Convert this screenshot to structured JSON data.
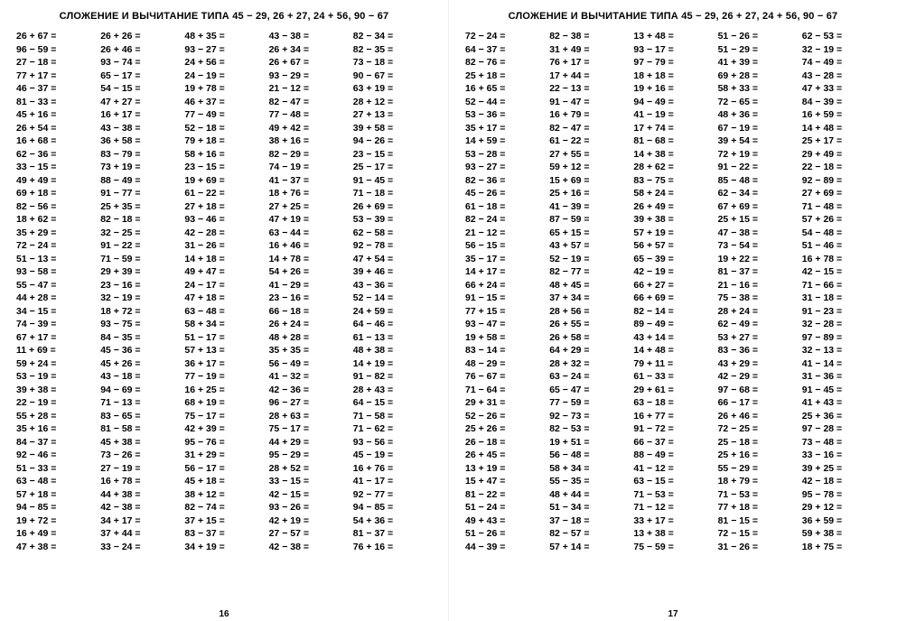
{
  "title": "СЛОЖЕНИЕ И ВЫЧИТАНИЕ ТИПА 45 − 29, 26 + 27, 24 + 56, 90 − 67",
  "page_left_num": "16",
  "page_right_num": "17",
  "left_cols": [
    [
      "26 + 67 =",
      "96 − 59 =",
      "27 − 18 =",
      "77 + 17 =",
      "46 − 37 =",
      "81 − 33 =",
      "45 + 16 =",
      "26 + 54 =",
      "16 + 68 =",
      "62 − 36 =",
      "33 − 15 =",
      "49 + 49 =",
      "69 + 18 =",
      "82 − 56 =",
      "18 + 62 =",
      "35 + 29 =",
      "72 − 24 =",
      "51 − 13 =",
      "93 − 58 =",
      "55 − 47 =",
      "44 + 28 =",
      "34 − 15 =",
      "74 − 39 =",
      "67 + 17 =",
      "11 + 69 =",
      "59 + 24 =",
      "53 − 19 =",
      "39 + 38 =",
      "22 − 19 =",
      "55 + 28 =",
      "35 + 16 =",
      "84 − 37 =",
      "92 − 46 =",
      "51 − 33 =",
      "63 − 48 =",
      "57 + 18 =",
      "94 − 85 =",
      "19 + 72 =",
      "16 + 49 =",
      "47 + 38 ="
    ],
    [
      "26 + 26 =",
      "26 + 46 =",
      "93 − 74 =",
      "65 − 17 =",
      "54 − 15 =",
      "47 + 27 =",
      "16 + 17 =",
      "43 − 38 =",
      "36 + 58 =",
      "83 − 79 =",
      "73 + 19 =",
      "88 − 49 =",
      "91 − 77 =",
      "25 + 35 =",
      "82 − 18 =",
      "32 − 25 =",
      "91 − 22 =",
      "71 − 59 =",
      "29 + 39 =",
      "23 − 16 =",
      "32 − 19 =",
      "18 + 72 =",
      "93 − 75 =",
      "84 − 35 =",
      "45 − 36 =",
      "45 + 26 =",
      "43 − 18 =",
      "94 − 69 =",
      "71 − 13 =",
      "83 − 65 =",
      "81 − 58 =",
      "45 + 38 =",
      "73 − 26 =",
      "27 − 19 =",
      "16 + 78 =",
      "44 + 38 =",
      "42 − 38 =",
      "34 + 17 =",
      "37 + 44 =",
      "33 − 24 ="
    ],
    [
      "48 + 35 =",
      "93 − 27 =",
      "24 + 56 =",
      "24 − 19 =",
      "19 + 78 =",
      "46 + 37 =",
      "77 − 49 =",
      "52 − 18 =",
      "79 + 18 =",
      "58 + 16 =",
      "23 − 15 =",
      "19 + 69 =",
      "61 − 22 =",
      "27 + 18 =",
      "93 − 46 =",
      "42 − 28 =",
      "31 − 26 =",
      "14 + 18 =",
      "49 + 47 =",
      "24 − 17 =",
      "47 + 18 =",
      "63 − 48 =",
      "58 + 34 =",
      "51 − 17 =",
      "57 + 13 =",
      "36 + 17 =",
      "77 − 19 =",
      "16 + 25 =",
      "68 + 19 =",
      "75 − 17 =",
      "42 + 39 =",
      "95 − 76 =",
      "31 + 29 =",
      "56 − 17 =",
      "45 + 18 =",
      "38 + 12 =",
      "82 − 74 =",
      "37 + 15 =",
      "83 − 37 =",
      "34 + 19 ="
    ],
    [
      "43 − 38 =",
      "26 + 34 =",
      "26 + 67 =",
      "93 − 29 =",
      "21 − 12 =",
      "82 − 47 =",
      "77 − 48 =",
      "49 + 42 =",
      "38 + 16 =",
      "82 − 29 =",
      "74 − 19 =",
      "41 − 37 =",
      "18 + 76 =",
      "27 + 25 =",
      "47 + 19 =",
      "63 − 44 =",
      "16 + 46 =",
      "14 + 78 =",
      "54 + 26 =",
      "41 − 29 =",
      "23 − 16 =",
      "66 − 18 =",
      "26 + 24 =",
      "48 + 28 =",
      "35 + 35 =",
      "56 − 49 =",
      "41 − 32 =",
      "42 − 36 =",
      "96 − 27 =",
      "28 + 63 =",
      "75 − 17 =",
      "44 + 29 =",
      "95 − 29 =",
      "28 + 52 =",
      "33 − 15 =",
      "42 − 15 =",
      "93 − 26 =",
      "42 + 19 =",
      "27 − 57 =",
      "42 − 38 ="
    ],
    [
      "82 − 34 =",
      "82 − 35 =",
      "73 − 18 =",
      "90 − 67 =",
      "63 + 19 =",
      "28 + 12 =",
      "27 + 13 =",
      "39 + 58 =",
      "94 − 26 =",
      "23 − 15 =",
      "25 − 17 =",
      "91 − 45 =",
      "71 − 18 =",
      "26 + 69 =",
      "53 − 39 =",
      "62 − 58 =",
      "92 − 78 =",
      "47 + 54 =",
      "39 + 46 =",
      "43 − 36 =",
      "52 − 14 =",
      "24 + 59 =",
      "64 − 46 =",
      "61 − 13 =",
      "48 + 38 =",
      "14 + 19 =",
      "91 − 82 =",
      "28 + 43 =",
      "64 − 15 =",
      "71 − 58 =",
      "71 − 62 =",
      "93 − 56 =",
      "45 − 19 =",
      "16 + 76 =",
      "41 − 17 =",
      "92 − 77 =",
      "94 − 85 =",
      "54 + 36 =",
      "81 − 37 =",
      "76 + 16 ="
    ]
  ],
  "right_cols": [
    [
      "72 − 24 =",
      "64 − 37 =",
      "82 − 76 =",
      "25 + 18 =",
      "16 + 65 =",
      "52 − 44 =",
      "53 − 36 =",
      "35 + 17 =",
      "14 + 59 =",
      "53 − 28 =",
      "93 − 27 =",
      "82 − 36 =",
      "45 − 26 =",
      "61 − 18 =",
      "82 − 24 =",
      "21 − 12 =",
      "56 − 15 =",
      "35 − 17 =",
      "14 + 17 =",
      "66 + 24 =",
      "91 − 15 =",
      "77 + 15 =",
      "93 − 47 =",
      "19 + 58 =",
      "83 − 14 =",
      "48 − 29 =",
      "76 − 67 =",
      "71 − 64 =",
      "29 + 31 =",
      "52 − 26 =",
      "25 + 26 =",
      "26 − 18 =",
      "26 + 45 =",
      "13 + 19 =",
      "15 + 47 =",
      "81 − 22 =",
      "51 − 24 =",
      "49 + 43 =",
      "51 − 26 =",
      "44 − 39 ="
    ],
    [
      "82 − 38 =",
      "31 + 49 =",
      "76 + 17 =",
      "17 + 44 =",
      "22 − 13 =",
      "91 − 47 =",
      "16 + 79 =",
      "82 − 47 =",
      "61 − 22 =",
      "27 + 55 =",
      "59 + 12 =",
      "15 + 69 =",
      "25 + 16 =",
      "41 − 39 =",
      "87 − 59 =",
      "65 + 15 =",
      "43 + 57 =",
      "52 − 19 =",
      "82 − 77 =",
      "48 + 45 =",
      "37 + 34 =",
      "28 + 56 =",
      "26 + 55 =",
      "26 + 58 =",
      "64 + 29 =",
      "28 + 32 =",
      "63 − 24 =",
      "65 − 47 =",
      "77 − 59 =",
      "92 − 73 =",
      "82 − 53 =",
      "19 + 51 =",
      "56 − 48 =",
      "58 + 34 =",
      "55 − 35 =",
      "48 + 44 =",
      "51 − 34 =",
      "37 − 18 =",
      "82 − 57 =",
      "57 + 14 ="
    ],
    [
      "13 + 48 =",
      "93 − 17 =",
      "97 − 79 =",
      "18 + 18 =",
      "19 + 16 =",
      "94 − 49 =",
      "41 − 19 =",
      "17 + 74 =",
      "81 − 68 =",
      "14 + 38 =",
      "28 + 62 =",
      "83 − 75 =",
      "58 + 24 =",
      "26 + 49 =",
      "39 + 38 =",
      "57 + 19 =",
      "56 + 57 =",
      "65 − 39 =",
      "42 − 19 =",
      "66 + 27 =",
      "66 + 69 =",
      "82 − 14 =",
      "89 − 49 =",
      "43 + 14 =",
      "14 + 48 =",
      "79 + 11 =",
      "61 − 33 =",
      "29 + 61 =",
      "63 − 18 =",
      "16 + 77 =",
      "91 − 72 =",
      "66 − 37 =",
      "88 − 49 =",
      "41 − 12 =",
      "63 − 15 =",
      "71 − 53 =",
      "71 − 12 =",
      "33 + 17 =",
      "13 + 38 =",
      "75 − 59 ="
    ],
    [
      "51 − 26 =",
      "51 − 29 =",
      "41 + 39 =",
      "69 + 28 =",
      "58 + 33 =",
      "72 − 65 =",
      "48 + 36 =",
      "67 − 19 =",
      "39 + 54 =",
      "72 + 19 =",
      "91 − 22 =",
      "85 − 48 =",
      "62 − 34 =",
      "67 + 69 =",
      "25 + 15 =",
      "47 − 38 =",
      "73 − 54 =",
      "19 + 22 =",
      "81 − 37 =",
      "21 − 16 =",
      "75 − 38 =",
      "28 + 24 =",
      "62 − 49 =",
      "53 + 27 =",
      "83 − 36 =",
      "43 + 29 =",
      "42 − 29 =",
      "97 − 68 =",
      "66 − 17 =",
      "26 + 46 =",
      "72 − 25 =",
      "25 − 18 =",
      "25 + 16 =",
      "55 − 29 =",
      "18 + 79 =",
      "71 − 53 =",
      "77 + 18 =",
      "81 − 15 =",
      "72 − 15 =",
      "31 − 26 ="
    ],
    [
      "62 − 53 =",
      "32 − 19 =",
      "74 − 49 =",
      "43 − 28 =",
      "47 + 33 =",
      "84 − 39 =",
      "16 + 59 =",
      "14 + 48 =",
      "25 + 17 =",
      "29 + 49 =",
      "22 − 18 =",
      "92 − 89 =",
      "27 + 69 =",
      "71 − 48 =",
      "57 + 26 =",
      "54 − 48 =",
      "51 − 46 =",
      "16 + 78 =",
      "42 − 15 =",
      "71 − 66 =",
      "31 − 18 =",
      "91 − 23 =",
      "32 − 28 =",
      "97 − 89 =",
      "32 − 13 =",
      "41 − 14 =",
      "31 − 36 =",
      "91 − 45 =",
      "41 + 43 =",
      "25 + 36 =",
      "97 − 28 =",
      "73 − 48 =",
      "33 − 16 =",
      "39 + 25 =",
      "42 − 18 =",
      "95 − 78 =",
      "29 + 12 =",
      "36 + 59 =",
      "59 + 38 =",
      "18 + 75 ="
    ]
  ]
}
